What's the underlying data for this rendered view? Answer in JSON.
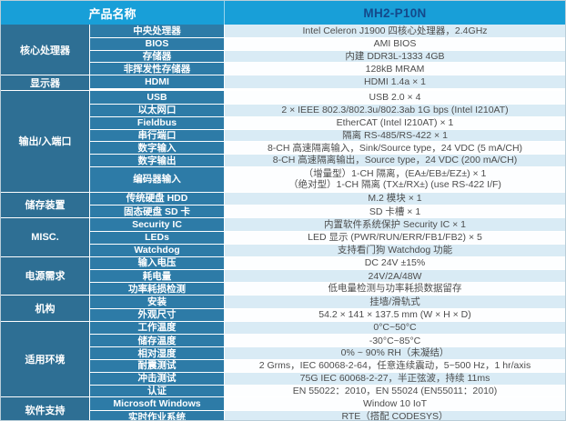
{
  "header": {
    "left_label": "产品名称",
    "model": "MH2-P10N"
  },
  "colors": {
    "header_bg": "#189fd8",
    "model_text": "#14498a",
    "category_bg": "#2e6f94",
    "label_bg": "#2d7ba7",
    "row_alt": "#d9ebf5",
    "row_plain": "#fdfeff",
    "value_text": "#4d4d4d",
    "grid_border": "#ffffff",
    "outer_border": "#b9cdd8"
  },
  "sections": [
    {
      "category": "核心处理器",
      "rows": [
        {
          "label": "中央处理器",
          "value": "Intel Celeron J1900 四核心处理器，2.4GHz",
          "shade": "light"
        },
        {
          "label": "BIOS",
          "value": "AMI BIOS",
          "shade": "plain"
        },
        {
          "label": "存储器",
          "value": "内建 DDR3L-1333 4GB",
          "shade": "light"
        },
        {
          "label": "非挥发性存储器",
          "value": "128kB MRAM",
          "shade": "plain"
        }
      ]
    },
    {
      "category": "显示器",
      "rows": [
        {
          "label": "HDMI",
          "value": "HDMI 1.4a × 1",
          "shade": "light"
        }
      ]
    },
    {
      "category": "输出/入端口",
      "rows": [
        {
          "label": "USB",
          "value": "USB 2.0 × 4",
          "shade": "plain"
        },
        {
          "label": "以太网口",
          "value": "2 × IEEE 802.3/802.3u/802.3ab 1G bps (Intel I210AT)",
          "shade": "light"
        },
        {
          "label": "Fieldbus",
          "value": "EtherCAT (Intel I210AT) × 1",
          "shade": "plain"
        },
        {
          "label": "串行端口",
          "value": "隔离 RS-485/RS-422 × 1",
          "shade": "light"
        },
        {
          "label": "数字输入",
          "value": "8-CH 高速隔离输入，Sink/Source type，24 VDC (5 mA/CH)",
          "shade": "plain"
        },
        {
          "label": "数字输出",
          "value": "8-CH 高速隔离输出，Source type，24 VDC (200 mA/CH)",
          "shade": "light"
        },
        {
          "label": "编码器输入",
          "value": "（增量型）1-CH 隔离，(EA±/EB±/EZ±) × 1\n（绝对型）1-CH 隔离 (TX±/RX±) (use RS-422 I/F)",
          "shade": "plain",
          "tall": true
        }
      ]
    },
    {
      "category": "储存装置",
      "rows": [
        {
          "label": "传统硬盘 HDD",
          "value": "M.2 模块 × 1",
          "shade": "light"
        },
        {
          "label": "固态硬盘 SD 卡",
          "value": "SD 卡槽 × 1",
          "shade": "plain"
        }
      ]
    },
    {
      "category": "MISC.",
      "rows": [
        {
          "label": "Security IC",
          "value": "内置软件系统保护 Security IC × 1",
          "shade": "light"
        },
        {
          "label": "LEDs",
          "value": "LED 显示 (PWR/RUN/ERR/FB1/FB2) × 5",
          "shade": "plain"
        },
        {
          "label": "Watchdog",
          "value": "支持看门狗 Watchdog 功能",
          "shade": "light"
        }
      ]
    },
    {
      "category": "电源需求",
      "rows": [
        {
          "label": "输入电压",
          "value": "DC 24V ±15%",
          "shade": "plain"
        },
        {
          "label": "耗电量",
          "value": "24V/2A/48W",
          "shade": "light"
        },
        {
          "label": "功率耗损检测",
          "value": "低电量检测与功率耗损数据留存",
          "shade": "plain"
        }
      ]
    },
    {
      "category": "机构",
      "rows": [
        {
          "label": "安装",
          "value": "挂墙/滑轨式",
          "shade": "light"
        },
        {
          "label": "外观尺寸",
          "value": "54.2 × 141 × 137.5 mm (W × H × D)",
          "shade": "plain"
        }
      ]
    },
    {
      "category": "适用环境",
      "rows": [
        {
          "label": "工作温度",
          "value": "0°C~50°C",
          "shade": "light"
        },
        {
          "label": "储存温度",
          "value": "-30°C~85°C",
          "shade": "plain"
        },
        {
          "label": "相对湿度",
          "value": "0% ~ 90% RH（未凝结）",
          "shade": "light"
        },
        {
          "label": "耐震测试",
          "value": "2 Grms，IEC 60068-2-64，任意连续震动，5~500 Hz，1 hr/axis",
          "shade": "plain"
        },
        {
          "label": "冲击测试",
          "value": "75G IEC 60068-2-27，半正弦波，持续 11ms",
          "shade": "light"
        },
        {
          "label": "认证",
          "value": "EN 55022：2010，EN 55024 (EN55011：2010)",
          "shade": "plain"
        }
      ]
    },
    {
      "category": "软件支持",
      "rows": [
        {
          "label": "Microsoft Windows",
          "value": "Window 10 IoT",
          "shade": "plain"
        },
        {
          "label": "实时作业系统",
          "value": "RTE（搭配 CODESYS）",
          "shade": "light"
        }
      ]
    }
  ]
}
